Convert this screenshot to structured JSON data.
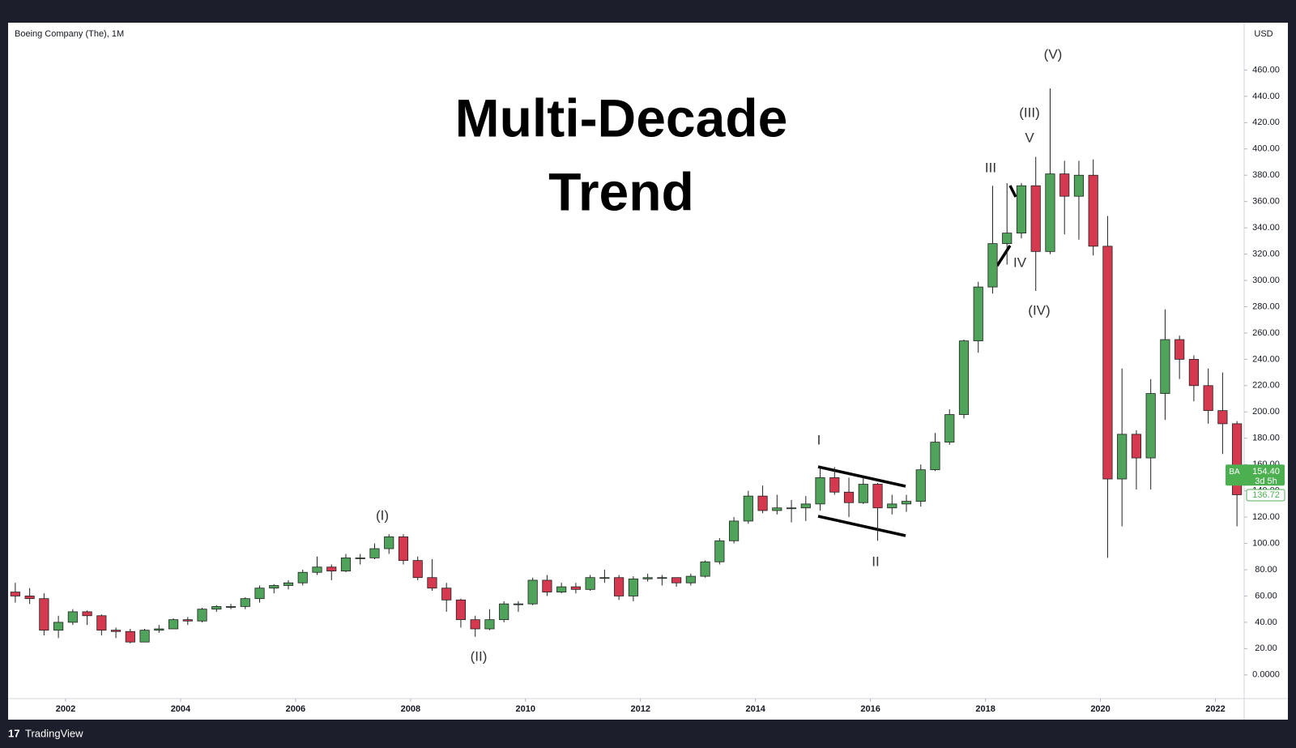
{
  "chart_data": {
    "type": "candlestick",
    "title": "Boeing Company (The), 1M",
    "headline": [
      "Multi-Decade",
      "Trend"
    ],
    "y_axis_label": "USD",
    "brand": "TradingView",
    "up_color": "#4fa35a",
    "down_color": "#d4394f",
    "grid": false,
    "x": [
      2001.125,
      2001.375,
      2001.625,
      2001.875,
      2002.125,
      2002.375,
      2002.625,
      2002.875,
      2003.125,
      2003.375,
      2003.625,
      2003.875,
      2004.125,
      2004.375,
      2004.625,
      2004.875,
      2005.125,
      2005.375,
      2005.625,
      2005.875,
      2006.125,
      2006.375,
      2006.625,
      2006.875,
      2007.125,
      2007.375,
      2007.625,
      2007.875,
      2008.125,
      2008.375,
      2008.625,
      2008.875,
      2009.125,
      2009.375,
      2009.625,
      2009.875,
      2010.125,
      2010.375,
      2010.625,
      2010.875,
      2011.125,
      2011.375,
      2011.625,
      2011.875,
      2012.125,
      2012.375,
      2012.625,
      2012.875,
      2013.125,
      2013.375,
      2013.625,
      2013.875,
      2014.125,
      2014.375,
      2014.625,
      2014.875,
      2015.125,
      2015.375,
      2015.625,
      2015.875,
      2016.125,
      2016.375,
      2016.625,
      2016.875,
      2017.125,
      2017.375,
      2017.625,
      2017.875,
      2018.125,
      2018.375,
      2018.625,
      2018.875,
      2019.125,
      2019.375,
      2019.625,
      2019.875,
      2020.125,
      2020.375,
      2020.625,
      2020.875,
      2021.125,
      2021.375,
      2021.625,
      2021.875,
      2022.125,
      2022.375
    ],
    "open": [
      63,
      60,
      58,
      34,
      40,
      48,
      45,
      34,
      33,
      25,
      34,
      35,
      42,
      41,
      50,
      52,
      52,
      58,
      66,
      68,
      70,
      78,
      82,
      79,
      89,
      89,
      96,
      105,
      87,
      74,
      66,
      57,
      42,
      35,
      42,
      54,
      54,
      72,
      63,
      67,
      65,
      74,
      74,
      60,
      73,
      74,
      74,
      70,
      75,
      86,
      102,
      117,
      136,
      125,
      127,
      127,
      130,
      150,
      139,
      131,
      145,
      127,
      130,
      132,
      156,
      177,
      198,
      254,
      295,
      328,
      336,
      372,
      322,
      381,
      364,
      380,
      326,
      149,
      183,
      165,
      214,
      255,
      240,
      220,
      201,
      191
    ],
    "high": [
      70,
      66,
      62,
      45,
      50,
      49,
      46,
      36,
      35,
      35,
      38,
      43,
      44,
      51,
      53,
      54,
      59,
      68,
      69,
      72,
      80,
      90,
      84,
      92,
      92,
      100,
      107,
      107,
      90,
      88,
      70,
      58,
      45,
      50,
      56,
      56,
      74,
      76,
      70,
      70,
      76,
      80,
      76,
      75,
      77,
      76,
      74,
      77,
      87,
      104,
      120,
      140,
      144,
      137,
      133,
      136,
      158,
      158,
      150,
      150,
      146,
      137,
      137,
      160,
      184,
      202,
      255,
      299,
      372,
      374,
      374,
      394,
      446,
      391,
      391,
      392,
      349,
      233,
      186,
      225,
      278,
      258,
      243,
      233,
      230,
      193
    ],
    "low": [
      55,
      54,
      30,
      28,
      38,
      38,
      30,
      28,
      24,
      25,
      32,
      35,
      38,
      40,
      48,
      50,
      50,
      55,
      62,
      65,
      68,
      76,
      72,
      78,
      84,
      88,
      92,
      84,
      72,
      64,
      48,
      36,
      29,
      34,
      40,
      48,
      53,
      60,
      62,
      62,
      64,
      70,
      57,
      56,
      71,
      68,
      67,
      68,
      74,
      84,
      100,
      115,
      123,
      122,
      116,
      117,
      125,
      137,
      120,
      130,
      102,
      122,
      124,
      128,
      155,
      175,
      195,
      245,
      290,
      312,
      332,
      292,
      320,
      335,
      331,
      319,
      89,
      113,
      141,
      141,
      194,
      225,
      208,
      191,
      168,
      113
    ],
    "close": [
      60,
      58,
      34,
      40,
      48,
      45,
      34,
      33,
      25,
      34,
      35,
      42,
      41,
      50,
      52,
      52,
      58,
      66,
      68,
      70,
      78,
      82,
      79,
      89,
      89,
      96,
      105,
      87,
      74,
      66,
      57,
      42,
      35,
      42,
      54,
      54,
      72,
      63,
      67,
      65,
      74,
      74,
      60,
      73,
      74,
      74,
      70,
      75,
      86,
      102,
      117,
      136,
      125,
      127,
      127,
      130,
      150,
      139,
      131,
      145,
      127,
      130,
      132,
      156,
      177,
      198,
      254,
      295,
      328,
      336,
      372,
      322,
      381,
      364,
      380,
      326,
      149,
      183,
      165,
      214,
      255,
      240,
      220,
      201,
      191,
      137
    ],
    "xlim": [
      2001,
      2022.5
    ],
    "ylim": [
      -18,
      496
    ],
    "xticks": [
      2002,
      2004,
      2006,
      2008,
      2010,
      2012,
      2014,
      2016,
      2018,
      2020,
      2022
    ],
    "yticks": [
      {
        "value": 0,
        "label": "0.0000"
      },
      {
        "value": 20,
        "label": "20.00"
      },
      {
        "value": 40,
        "label": "40.00"
      },
      {
        "value": 60,
        "label": "60.00"
      },
      {
        "value": 80,
        "label": "80.00"
      },
      {
        "value": 100,
        "label": "100.00"
      },
      {
        "value": 120,
        "label": "120.00"
      },
      {
        "value": 140,
        "label": "140.00"
      },
      {
        "value": 160,
        "label": "160.00"
      },
      {
        "value": 180,
        "label": "180.00"
      },
      {
        "value": 200,
        "label": "200.00"
      },
      {
        "value": 220,
        "label": "220.00"
      },
      {
        "value": 240,
        "label": "240.00"
      },
      {
        "value": 260,
        "label": "260.00"
      },
      {
        "value": 280,
        "label": "280.00"
      },
      {
        "value": 300,
        "label": "300.00"
      },
      {
        "value": 320,
        "label": "320.00"
      },
      {
        "value": 340,
        "label": "340.00"
      },
      {
        "value": 360,
        "label": "360.00"
      },
      {
        "value": 380,
        "label": "380.00"
      },
      {
        "value": 400,
        "label": "400.00"
      },
      {
        "value": 420,
        "label": "420.00"
      },
      {
        "value": 440,
        "label": "440.00"
      },
      {
        "value": 460,
        "label": "460.00"
      }
    ],
    "symbol": "BA",
    "last_price": {
      "value": 154.4,
      "label": "154.40"
    },
    "countdown": "3d 5h",
    "close_price": {
      "value": 136.72,
      "label": "136.72"
    },
    "annotations": [
      "(I)",
      "(II)",
      "I",
      "II",
      "III",
      "IV",
      "V",
      "(III)",
      "(IV)",
      "(V)"
    ]
  }
}
